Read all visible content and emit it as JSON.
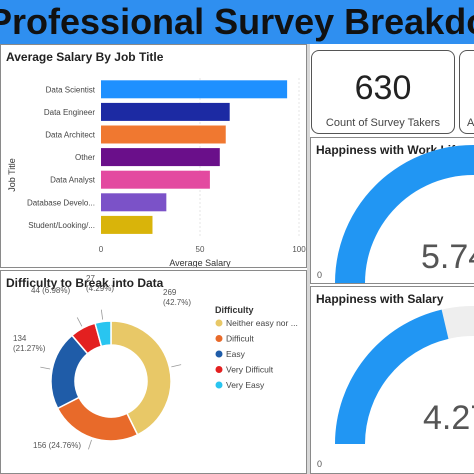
{
  "banner": {
    "title": "Professional Survey Breakdown"
  },
  "salary_panel": {
    "title": "Average Salary By Job Title"
  },
  "difficulty_panel": {
    "title": "Difficulty to Break into Data",
    "legend_title": "Difficulty"
  },
  "kpis": [
    {
      "value": "630",
      "label": "Count of Survey Takers"
    },
    {
      "value": "",
      "label": "A"
    }
  ],
  "work_life_panel": {
    "title": "Happiness with Work Life B",
    "min_label": "0",
    "value_text": "5.74",
    "fill_fraction": 0.574
  },
  "salary_happiness_panel": {
    "title": "Happiness with Salary",
    "min_label": "0",
    "value_text": "4.27",
    "fill_fraction": 0.427
  },
  "colors": {
    "banner": "#2f8ff0",
    "gauge_fill": "#2196f3",
    "gauge_track": "#eeeeee"
  },
  "chart_data": [
    {
      "type": "bar",
      "orientation": "horizontal",
      "title": "Average Salary By Job Title",
      "xlabel": "Average Salary",
      "ylabel": "Job Title",
      "xlim": [
        0,
        100
      ],
      "xticks": [
        "0",
        "50",
        "100"
      ],
      "grid": true,
      "categories": [
        "Data Scientist",
        "Data Engineer",
        "Data Architect",
        "Other",
        "Data Analyst",
        "Database Develo...",
        "Student/Looking/..."
      ],
      "values": [
        94,
        65,
        63,
        60,
        55,
        33,
        26
      ],
      "colors": [
        "#1e90ff",
        "#1c2aa3",
        "#f07830",
        "#6a0f8a",
        "#e34aa0",
        "#7b52c8",
        "#d9b40a"
      ]
    },
    {
      "type": "pie",
      "style": "donut",
      "title": "Difficulty to Break into Data",
      "legend_title": "Difficulty",
      "legend_position": "right",
      "slices": [
        {
          "label": "Neither easy nor ...",
          "value": 269,
          "display": "269",
          "percent": "(42.7%)",
          "color": "#e8c867"
        },
        {
          "label": "Difficult",
          "value": 156,
          "display": "156 (24.76%)",
          "percent": "",
          "color": "#e86a2a"
        },
        {
          "label": "Easy",
          "value": 134,
          "display": "134",
          "percent": "(21.27%)",
          "color": "#1f5ca8"
        },
        {
          "label": "Very Difficult",
          "value": 44,
          "display": "44 (6.98%)",
          "percent": "",
          "color": "#e32020"
        },
        {
          "label": "Very Easy",
          "value": 27,
          "display": "27",
          "percent": "(4.29%)",
          "color": "#29c5f0"
        }
      ]
    }
  ]
}
